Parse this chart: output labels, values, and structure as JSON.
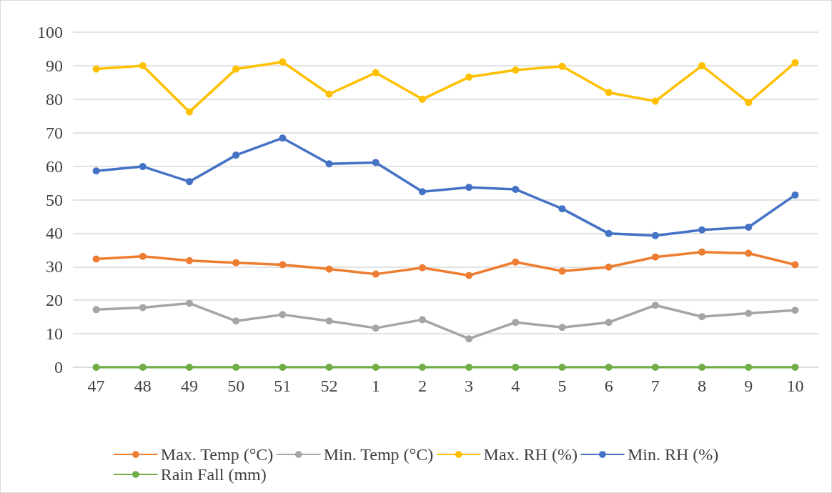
{
  "chart_data": {
    "type": "line",
    "categories": [
      "47",
      "48",
      "49",
      "50",
      "51",
      "52",
      "1",
      "2",
      "3",
      "4",
      "5",
      "6",
      "7",
      "8",
      "9",
      "10"
    ],
    "series": [
      {
        "name": "Max. Temp (°C)",
        "color": "#ed7d31",
        "values": [
          32.3,
          33.1,
          31.8,
          31.2,
          30.6,
          29.3,
          27.8,
          29.7,
          27.4,
          31.4,
          28.7,
          29.9,
          32.9,
          34.4,
          34.0,
          30.6
        ]
      },
      {
        "name": "Min. Temp (°C)",
        "color": "#a5a5a5",
        "values": [
          17.2,
          17.8,
          19.1,
          13.8,
          15.7,
          13.8,
          11.7,
          14.2,
          8.5,
          13.4,
          11.9,
          13.4,
          18.5,
          15.1,
          16.1,
          17.0
        ]
      },
      {
        "name": "Max. RH (%)",
        "color": "#ffc000",
        "values": [
          89.0,
          90.0,
          76.2,
          89.0,
          91.1,
          81.5,
          87.9,
          80.0,
          86.6,
          88.7,
          89.8,
          82.0,
          79.4,
          90.0,
          79.0,
          90.9
        ]
      },
      {
        "name": "Min. RH (%)",
        "color": "#4472c4",
        "values": [
          58.6,
          59.9,
          55.4,
          63.3,
          68.4,
          60.7,
          61.1,
          52.4,
          53.7,
          53.1,
          47.3,
          39.9,
          39.3,
          41.0,
          41.8,
          51.4
        ]
      },
      {
        "name": "Rain Fall (mm)",
        "color": "#70ad47",
        "values": [
          0,
          0,
          0,
          0,
          0,
          0,
          0,
          0,
          0,
          0,
          0,
          0,
          0,
          0,
          0,
          0
        ]
      }
    ],
    "ylim": [
      0,
      100
    ],
    "yticks": [
      0,
      10,
      20,
      30,
      40,
      50,
      60,
      70,
      80,
      90,
      100
    ],
    "grid": "y",
    "legend": "bottom",
    "marker": "circle",
    "line_style": "solid"
  }
}
